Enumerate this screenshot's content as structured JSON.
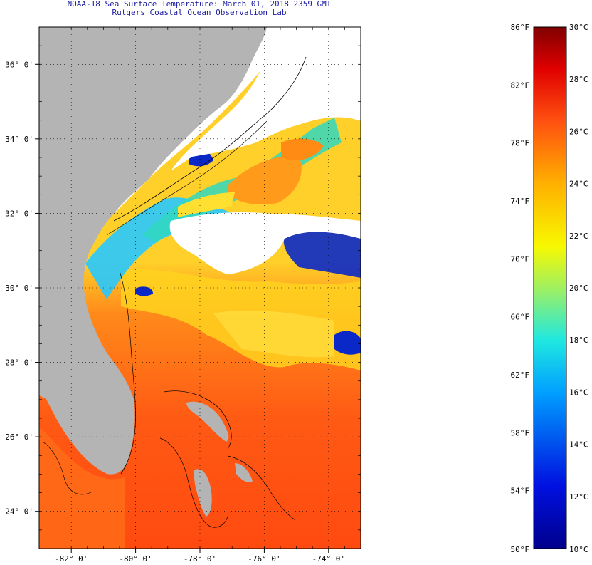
{
  "header": {
    "title_line1": "NOAA-18 Sea Surface Temperature:  March 01, 2018 2359 GMT",
    "title_line2": "Rutgers Coastal Ocean Observation Lab"
  },
  "map": {
    "lat_labels": [
      "36° 0'",
      "34° 0'",
      "32° 0'",
      "30° 0'",
      "28° 0'",
      "26° 0'",
      "24° 0'"
    ],
    "lat_values": [
      36,
      34,
      32,
      30,
      28,
      26,
      24
    ],
    "lon_labels": [
      "-82° 0'",
      "-80° 0'",
      "-78° 0'",
      "-76° 0'",
      "-74° 0'"
    ],
    "lon_values": [
      -82,
      -80,
      -78,
      -76,
      -74
    ],
    "lat_range": [
      23,
      37
    ],
    "lon_range": [
      -83,
      -73
    ],
    "colors": {
      "land": "#b4b4b4",
      "cloud": "#ffffff",
      "warm": "#ff5a14",
      "mid": "#ffd21e",
      "cool": "#28c8ff",
      "cold": "#0a28c8"
    }
  },
  "colorbar": {
    "f_labels": [
      "86°F",
      "82°F",
      "78°F",
      "74°F",
      "70°F",
      "66°F",
      "62°F",
      "58°F",
      "54°F",
      "50°F"
    ],
    "f_values": [
      86,
      82,
      78,
      74,
      70,
      66,
      62,
      58,
      54,
      50
    ],
    "c_labels": [
      "30°C",
      "28°C",
      "26°C",
      "24°C",
      "22°C",
      "20°C",
      "18°C",
      "16°C",
      "14°C",
      "12°C",
      "10°C"
    ],
    "c_values": [
      30,
      28,
      26,
      24,
      22,
      20,
      18,
      16,
      14,
      12,
      10
    ],
    "range_celsius": [
      10,
      30
    ]
  }
}
